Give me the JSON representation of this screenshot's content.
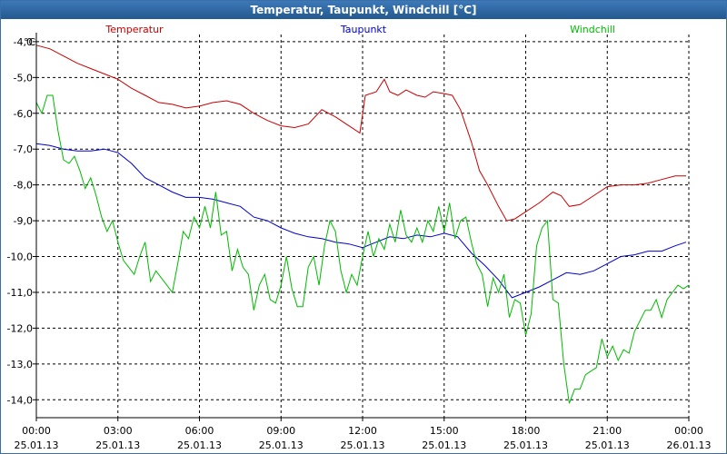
{
  "window": {
    "title": "Temperatur, Taupunkt, Windchill [°C]"
  },
  "chart_data": {
    "type": "line",
    "title": "Temperatur, Taupunkt, Windchill [°C]",
    "ylabel": "°C",
    "xlabel": "",
    "ylim": [
      -14.5,
      -3.8
    ],
    "xlim": [
      0,
      24
    ],
    "grid": true,
    "y_ticks": [
      -4,
      -5,
      -6,
      -7,
      -8,
      -9,
      -10,
      -11,
      -12,
      -13,
      -14
    ],
    "y_tick_labels": [
      "-4,0",
      "-5,0",
      "-6,0",
      "-7,0",
      "-8,0",
      "-9,0",
      "-10,0",
      "-11,0",
      "-12,0",
      "-13,0",
      "-14,0"
    ],
    "x_ticks": [
      0,
      3,
      6,
      9,
      12,
      15,
      18,
      21,
      24
    ],
    "x_tick_labels": [
      {
        "time": "00:00",
        "date": "25.01.13"
      },
      {
        "time": "03:00",
        "date": "25.01.13"
      },
      {
        "time": "06:00",
        "date": "25.01.13"
      },
      {
        "time": "09:00",
        "date": "25.01.13"
      },
      {
        "time": "12:00",
        "date": "25.01.13"
      },
      {
        "time": "15:00",
        "date": "25.01.13"
      },
      {
        "time": "18:00",
        "date": "25.01.13"
      },
      {
        "time": "21:00",
        "date": "25.01.13"
      },
      {
        "time": "00:00",
        "date": "26.01.13"
      }
    ],
    "series": [
      {
        "name": "Temperatur",
        "color": "#cc0000",
        "x": [
          0,
          0.5,
          1,
          1.5,
          2,
          2.5,
          3,
          3.5,
          4,
          4.5,
          5,
          5.5,
          6,
          6.5,
          7,
          7.5,
          8,
          8.5,
          9,
          9.5,
          10,
          10.5,
          11,
          11.5,
          11.9,
          12.1,
          12.5,
          12.8,
          13,
          13.3,
          13.6,
          14,
          14.3,
          14.6,
          15,
          15.3,
          15.6,
          16,
          16.3,
          16.6,
          17,
          17.3,
          17.6,
          18,
          18.5,
          19,
          19.3,
          19.6,
          20,
          20.5,
          21,
          21.5,
          22,
          22.5,
          23,
          23.5,
          23.9
        ],
        "values": [
          -4.1,
          -4.2,
          -4.4,
          -4.6,
          -4.75,
          -4.9,
          -5.05,
          -5.3,
          -5.5,
          -5.7,
          -5.75,
          -5.85,
          -5.8,
          -5.7,
          -5.65,
          -5.75,
          -6.0,
          -6.2,
          -6.35,
          -6.4,
          -6.3,
          -5.9,
          -6.1,
          -6.35,
          -6.55,
          -5.5,
          -5.4,
          -5.05,
          -5.4,
          -5.5,
          -5.35,
          -5.5,
          -5.55,
          -5.4,
          -5.45,
          -5.5,
          -5.9,
          -6.8,
          -7.6,
          -8.0,
          -8.6,
          -9.0,
          -8.95,
          -8.75,
          -8.5,
          -8.2,
          -8.3,
          -8.6,
          -8.55,
          -8.3,
          -8.05,
          -8.0,
          -8.0,
          -7.95,
          -7.85,
          -7.75,
          -7.75
        ]
      },
      {
        "name": "Taupunkt",
        "color": "#0000cc",
        "x": [
          0,
          0.5,
          1,
          1.5,
          2,
          2.5,
          3,
          3.5,
          4,
          4.5,
          5,
          5.5,
          6,
          6.5,
          7,
          7.5,
          8,
          8.5,
          9,
          9.5,
          10,
          10.5,
          11,
          11.5,
          12,
          12.5,
          13,
          13.5,
          14,
          14.5,
          15,
          15.5,
          16,
          16.5,
          17,
          17.5,
          18,
          18.5,
          19,
          19.5,
          20,
          20.5,
          21,
          21.5,
          22,
          22.5,
          23,
          23.5,
          23.9
        ],
        "values": [
          -6.85,
          -6.9,
          -7.0,
          -7.05,
          -7.05,
          -7.0,
          -7.1,
          -7.4,
          -7.8,
          -8.0,
          -8.2,
          -8.35,
          -8.35,
          -8.4,
          -8.5,
          -8.6,
          -8.9,
          -9.0,
          -9.2,
          -9.35,
          -9.45,
          -9.5,
          -9.6,
          -9.65,
          -9.75,
          -9.6,
          -9.45,
          -9.5,
          -9.4,
          -9.45,
          -9.35,
          -9.45,
          -9.9,
          -10.25,
          -10.65,
          -11.15,
          -11.0,
          -10.85,
          -10.65,
          -10.45,
          -10.5,
          -10.4,
          -10.2,
          -10.0,
          -9.95,
          -9.85,
          -9.85,
          -9.7,
          -9.6
        ]
      },
      {
        "name": "Windchill",
        "color": "#00bb00",
        "x": [
          0,
          0.2,
          0.4,
          0.6,
          0.8,
          1,
          1.2,
          1.4,
          1.6,
          1.8,
          2,
          2.2,
          2.4,
          2.6,
          2.8,
          3,
          3.2,
          3.4,
          3.6,
          3.8,
          4,
          4.2,
          4.4,
          4.6,
          4.8,
          5,
          5.2,
          5.4,
          5.6,
          5.8,
          6,
          6.2,
          6.4,
          6.6,
          6.8,
          7,
          7.2,
          7.4,
          7.6,
          7.8,
          8,
          8.2,
          8.4,
          8.6,
          8.8,
          9,
          9.2,
          9.4,
          9.6,
          9.8,
          10,
          10.2,
          10.4,
          10.6,
          10.8,
          11,
          11.2,
          11.4,
          11.6,
          11.8,
          12,
          12.2,
          12.4,
          12.6,
          12.8,
          13,
          13.2,
          13.4,
          13.6,
          13.8,
          14,
          14.2,
          14.4,
          14.6,
          14.8,
          15,
          15.2,
          15.4,
          15.6,
          15.8,
          16,
          16.2,
          16.4,
          16.6,
          16.8,
          17,
          17.2,
          17.4,
          17.6,
          17.8,
          18,
          18.2,
          18.4,
          18.6,
          18.8,
          19,
          19.2,
          19.4,
          19.6,
          19.8,
          20,
          20.2,
          20.4,
          20.6,
          20.8,
          21,
          21.2,
          21.4,
          21.6,
          21.8,
          22,
          22.2,
          22.4,
          22.6,
          22.8,
          23,
          23.2,
          23.4,
          23.6,
          23.8,
          24
        ],
        "values": [
          -5.7,
          -6.0,
          -5.5,
          -5.5,
          -6.5,
          -7.3,
          -7.4,
          -7.2,
          -7.6,
          -8.1,
          -7.8,
          -8.3,
          -8.9,
          -9.3,
          -9.0,
          -9.6,
          -10.1,
          -10.3,
          -10.5,
          -10.0,
          -9.6,
          -10.7,
          -10.4,
          -10.6,
          -10.8,
          -11.0,
          -10.2,
          -9.3,
          -9.5,
          -8.9,
          -9.2,
          -8.6,
          -9.2,
          -8.2,
          -9.4,
          -9.3,
          -10.4,
          -9.8,
          -10.3,
          -10.5,
          -11.5,
          -10.8,
          -10.5,
          -11.2,
          -11.3,
          -10.8,
          -10.0,
          -10.9,
          -11.4,
          -11.4,
          -10.3,
          -10.0,
          -10.8,
          -9.7,
          -9.0,
          -9.3,
          -10.4,
          -11.0,
          -10.5,
          -10.8,
          -10.0,
          -9.3,
          -10.0,
          -9.5,
          -9.8,
          -9.1,
          -9.6,
          -8.7,
          -9.4,
          -9.6,
          -9.2,
          -9.6,
          -9.0,
          -9.3,
          -8.6,
          -9.3,
          -8.5,
          -9.5,
          -9.0,
          -8.9,
          -9.6,
          -10.2,
          -10.5,
          -11.4,
          -10.6,
          -11.0,
          -10.5,
          -11.7,
          -11.2,
          -11.3,
          -12.2,
          -11.6,
          -9.7,
          -9.2,
          -9.0,
          -11.2,
          -11.3,
          -13.0,
          -14.1,
          -13.7,
          -13.7,
          -13.3,
          -13.2,
          -13.1,
          -12.3,
          -12.8,
          -12.5,
          -12.9,
          -12.6,
          -12.7,
          -12.1,
          -11.8,
          -11.5,
          -11.5,
          -11.2,
          -11.7,
          -11.2,
          -11.0,
          -10.8,
          -10.9,
          -10.8
        ]
      }
    ]
  }
}
